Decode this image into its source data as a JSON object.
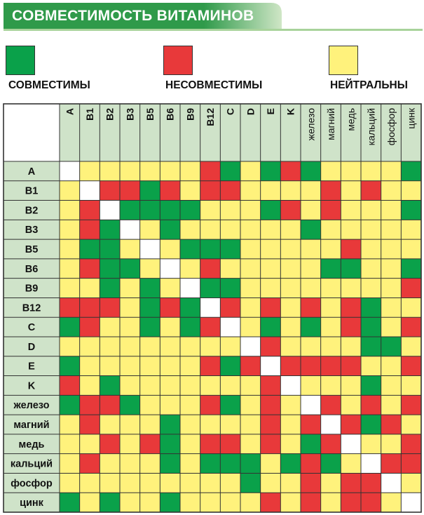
{
  "title": "СОВМЕСТИМОСТЬ ВИТАМИНОВ",
  "legend": [
    {
      "key": "G",
      "label": "СОВМЕСТИМЫ",
      "color": "#0aa14a"
    },
    {
      "key": "R",
      "label": "НЕСОВМЕСТИМЫ",
      "color": "#e8393a"
    },
    {
      "key": "Y",
      "label": "НЕЙТРАЛЬНЫ",
      "color": "#fff27c"
    }
  ],
  "colors": {
    "G": "#0aa14a",
    "R": "#e8393a",
    "Y": "#fff27c",
    "W": "#ffffff",
    "header": "#cfe3c9",
    "grid": "#333333",
    "title_bg": "#2f9a4a",
    "title_fade": "#cfe6c6"
  },
  "chart_data": {
    "type": "heatmap",
    "columns": [
      "A",
      "B1",
      "B2",
      "B3",
      "B5",
      "B6",
      "B9",
      "B12",
      "C",
      "D",
      "E",
      "K",
      "железо",
      "магний",
      "медь",
      "кальций",
      "фосфор",
      "цинк"
    ],
    "rows": [
      "A",
      "B1",
      "B2",
      "B3",
      "B5",
      "B6",
      "B9",
      "B12",
      "C",
      "D",
      "E",
      "K",
      "железо",
      "магний",
      "медь",
      "кальций",
      "фосфор",
      "цинк"
    ],
    "cells": [
      "WYYYYYYRGYGRGYYYYG",
      "YWRRGRYRRYYYYRYRYY",
      "YRWGGGGYYYGRYRYYYG",
      "YRGWYGYYYYYYGYYYYY",
      "YGGYWYGGGYYYYYRYYY",
      "YRGGYWYRYYYYYGGYYG",
      "YYGYGYWGGYYYYYYYYR",
      "RRRYGRGWRYRYRYRGYY",
      "GRYYGYGRWYGYGYRGYR",
      "YYYYYYYYYWRYYYYGGY",
      "GYYYYYYRGRWRRRRYYR",
      "RYGYYYYYYYRWYYYGYY",
      "GRRGYYYRGYRYWRYRYR",
      "YRYYYGYYYYRYRWRGRY",
      "YYRYRGYRRYRYGRWYYR",
      "YRYYYGYGGGYGRGYWRR",
      "YYYYYYYYYGYYRYRRWY",
      "GYGYYGYYYYRYRYRRYW"
    ]
  }
}
